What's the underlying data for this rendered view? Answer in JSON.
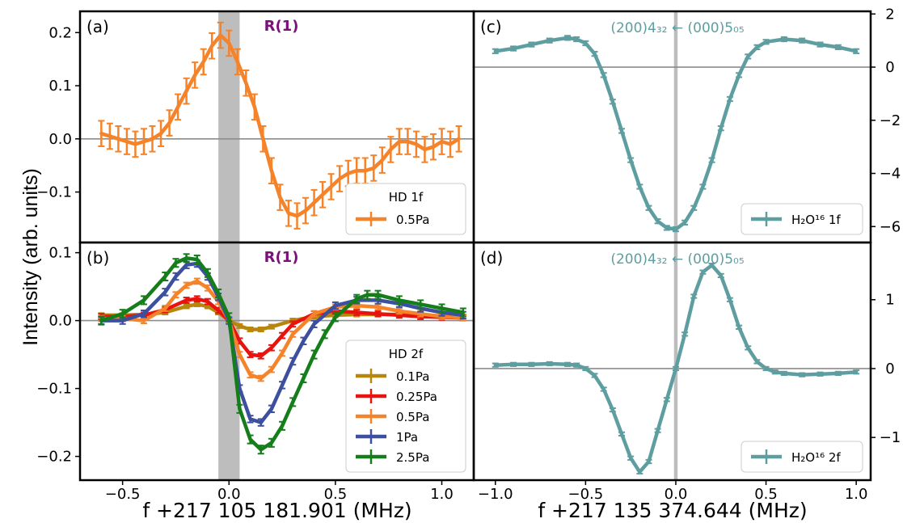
{
  "figure": {
    "ylabel": "Intensity (arb. units)",
    "left_xlabel": "f +217 105 181.901 (MHz)",
    "right_xlabel": "f +217 135 374.644 (MHz)"
  },
  "chart_data": [
    {
      "panel": "(a)",
      "type": "line",
      "annotation": "R(1)",
      "annotation_color": "#7d0f7d",
      "legend_title": "HD 1f",
      "legend_position": "lower-right",
      "xlim": [
        -0.7,
        1.15
      ],
      "ylim": [
        -0.195,
        0.24
      ],
      "xticks": [
        -0.5,
        0.0,
        0.5,
        1.0
      ],
      "yticks": [
        -0.1,
        0.0,
        0.1,
        0.2
      ],
      "ytick_labels": [
        "−0.1",
        "0.0",
        "0.1",
        "0.2"
      ],
      "zero_line": true,
      "highlight_band": [
        -0.05,
        0.05
      ],
      "series": [
        {
          "name": "0.5Pa",
          "color": "#f5832a",
          "err": 0.024,
          "x": [
            -0.6,
            -0.56,
            -0.52,
            -0.48,
            -0.44,
            -0.4,
            -0.36,
            -0.32,
            -0.28,
            -0.24,
            -0.2,
            -0.16,
            -0.12,
            -0.08,
            -0.04,
            0.0,
            0.04,
            0.08,
            0.12,
            0.16,
            0.2,
            0.24,
            0.28,
            0.32,
            0.36,
            0.4,
            0.44,
            0.48,
            0.52,
            0.56,
            0.6,
            0.64,
            0.68,
            0.72,
            0.76,
            0.8,
            0.84,
            0.88,
            0.92,
            0.96,
            1.0,
            1.04,
            1.08
          ],
          "y": [
            0.01,
            0.005,
            0.0,
            -0.005,
            -0.01,
            -0.005,
            0.0,
            0.01,
            0.03,
            0.06,
            0.09,
            0.12,
            0.145,
            0.175,
            0.195,
            0.18,
            0.145,
            0.105,
            0.06,
            0.0,
            -0.06,
            -0.11,
            -0.14,
            -0.145,
            -0.135,
            -0.12,
            -0.105,
            -0.09,
            -0.075,
            -0.065,
            -0.06,
            -0.06,
            -0.055,
            -0.04,
            -0.02,
            -0.005,
            -0.005,
            -0.01,
            -0.02,
            -0.015,
            -0.005,
            -0.01,
            0.0
          ]
        }
      ]
    },
    {
      "panel": "(b)",
      "type": "line",
      "annotation": "R(1)",
      "annotation_color": "#7d0f7d",
      "legend_title": "HD 2f",
      "legend_position": "lower-right",
      "xlim": [
        -0.7,
        1.15
      ],
      "ylim": [
        -0.235,
        0.115
      ],
      "xticks": [
        -0.5,
        0.0,
        0.5,
        1.0
      ],
      "xtick_labels": [
        "−0.5",
        "0.0",
        "0.5",
        "1.0"
      ],
      "yticks": [
        -0.2,
        -0.1,
        0.0,
        0.1
      ],
      "ytick_labels": [
        "−0.2",
        "−0.1",
        "0.0",
        "0.1"
      ],
      "zero_line": true,
      "highlight_band": [
        -0.05,
        0.05
      ],
      "series": [
        {
          "name": "0.1Pa",
          "color": "#b8860b",
          "err": 0.003,
          "x": [
            -0.6,
            -0.5,
            -0.4,
            -0.3,
            -0.2,
            -0.15,
            -0.1,
            -0.05,
            0.0,
            0.05,
            0.1,
            0.15,
            0.2,
            0.3,
            0.4,
            0.5,
            0.6,
            0.7,
            0.8,
            0.9,
            1.0,
            1.1
          ],
          "y": [
            0.008,
            0.008,
            0.009,
            0.012,
            0.021,
            0.024,
            0.021,
            0.012,
            0.0,
            -0.008,
            -0.013,
            -0.013,
            -0.009,
            0.0,
            0.006,
            0.008,
            0.009,
            0.009,
            0.009,
            0.008,
            0.007,
            0.006
          ]
        },
        {
          "name": "0.25Pa",
          "color": "#e8130f",
          "err": 0.004,
          "x": [
            -0.6,
            -0.5,
            -0.4,
            -0.3,
            -0.2,
            -0.15,
            -0.1,
            -0.05,
            0.0,
            0.05,
            0.1,
            0.15,
            0.2,
            0.25,
            0.3,
            0.4,
            0.5,
            0.6,
            0.7,
            0.8,
            0.9,
            1.0,
            1.1
          ],
          "y": [
            0.006,
            0.006,
            0.008,
            0.016,
            0.03,
            0.032,
            0.028,
            0.015,
            0.0,
            -0.03,
            -0.05,
            -0.052,
            -0.04,
            -0.022,
            -0.005,
            0.01,
            0.014,
            0.012,
            0.01,
            0.008,
            0.006,
            0.005,
            0.004
          ]
        },
        {
          "name": "0.5Pa",
          "color": "#f5832a",
          "err": 0.004,
          "x": [
            -0.6,
            -0.5,
            -0.4,
            -0.3,
            -0.25,
            -0.2,
            -0.15,
            -0.1,
            -0.05,
            0.0,
            0.05,
            0.1,
            0.15,
            0.2,
            0.25,
            0.3,
            0.4,
            0.5,
            0.6,
            0.7,
            0.8,
            0.9,
            1.0,
            1.1
          ],
          "y": [
            0.003,
            0.003,
            0.0,
            0.018,
            0.038,
            0.052,
            0.058,
            0.048,
            0.028,
            0.0,
            -0.05,
            -0.08,
            -0.085,
            -0.072,
            -0.048,
            -0.02,
            0.01,
            0.02,
            0.022,
            0.02,
            0.014,
            0.01,
            0.006,
            0.004
          ]
        },
        {
          "name": "1Pa",
          "color": "#3d4f9f",
          "err": 0.005,
          "x": [
            -0.6,
            -0.5,
            -0.4,
            -0.3,
            -0.25,
            -0.2,
            -0.15,
            -0.1,
            -0.05,
            0.0,
            0.05,
            0.1,
            0.15,
            0.2,
            0.25,
            0.3,
            0.35,
            0.4,
            0.5,
            0.6,
            0.7,
            0.8,
            0.9,
            1.0,
            1.1
          ],
          "y": [
            0.0,
            0.0,
            0.01,
            0.042,
            0.065,
            0.082,
            0.084,
            0.065,
            0.035,
            0.0,
            -0.1,
            -0.145,
            -0.15,
            -0.13,
            -0.095,
            -0.06,
            -0.03,
            -0.005,
            0.022,
            0.03,
            0.03,
            0.025,
            0.018,
            0.012,
            0.008
          ]
        },
        {
          "name": "2.5Pa",
          "color": "#157e1a",
          "err": 0.006,
          "x": [
            -0.6,
            -0.5,
            -0.4,
            -0.3,
            -0.25,
            -0.2,
            -0.15,
            -0.1,
            -0.05,
            0.0,
            0.05,
            0.1,
            0.15,
            0.2,
            0.25,
            0.3,
            0.35,
            0.4,
            0.45,
            0.5,
            0.6,
            0.65,
            0.7,
            0.8,
            0.9,
            1.0,
            1.1
          ],
          "y": [
            0.0,
            0.01,
            0.03,
            0.065,
            0.085,
            0.092,
            0.09,
            0.07,
            0.04,
            0.005,
            -0.13,
            -0.175,
            -0.19,
            -0.18,
            -0.155,
            -0.12,
            -0.085,
            -0.05,
            -0.02,
            0.005,
            0.032,
            0.038,
            0.038,
            0.03,
            0.024,
            0.018,
            0.012
          ]
        }
      ]
    },
    {
      "panel": "(c)",
      "type": "line",
      "annotation": "(200)4₃₂ ← (000)5₀₅",
      "annotation_color": "#5f9ea0",
      "legend_label": "H₂O¹⁶ 1f",
      "legend_position": "lower-right",
      "y_axis_side": "right",
      "xlim": [
        -1.12,
        1.08
      ],
      "ylim": [
        -6.6,
        2.1
      ],
      "xticks": [
        -1.0,
        -0.5,
        0.0,
        0.5,
        1.0
      ],
      "yticks": [
        -6,
        -4,
        -2,
        0,
        2
      ],
      "ytick_labels": [
        "−6",
        "−4",
        "−2",
        "0",
        "2"
      ],
      "zero_line": true,
      "highlight_band": [
        -0.01,
        0.01
      ],
      "series": [
        {
          "name": "H₂O¹⁶ 1f",
          "color": "#5f9ea0",
          "err": 0.08,
          "x": [
            -1.0,
            -0.9,
            -0.8,
            -0.7,
            -0.6,
            -0.55,
            -0.5,
            -0.45,
            -0.4,
            -0.35,
            -0.3,
            -0.25,
            -0.2,
            -0.15,
            -0.1,
            -0.05,
            0.0,
            0.05,
            0.1,
            0.15,
            0.2,
            0.25,
            0.3,
            0.35,
            0.4,
            0.45,
            0.5,
            0.6,
            0.7,
            0.8,
            0.9,
            1.0
          ],
          "y": [
            0.6,
            0.7,
            0.85,
            1.0,
            1.1,
            1.05,
            0.9,
            0.5,
            -0.3,
            -1.3,
            -2.4,
            -3.5,
            -4.5,
            -5.3,
            -5.8,
            -6.05,
            -6.1,
            -5.85,
            -5.3,
            -4.5,
            -3.5,
            -2.3,
            -1.2,
            -0.3,
            0.4,
            0.75,
            0.95,
            1.05,
            1.0,
            0.85,
            0.75,
            0.6
          ]
        }
      ]
    },
    {
      "panel": "(d)",
      "type": "line",
      "annotation": "(200)4₃₂ ← (000)5₀₅",
      "annotation_color": "#5f9ea0",
      "legend_label": "H₂O¹⁶ 2f",
      "legend_position": "lower-right",
      "y_axis_side": "right",
      "xlim": [
        -1.12,
        1.08
      ],
      "ylim": [
        -1.62,
        1.83
      ],
      "xticks": [
        -1.0,
        -0.5,
        0.0,
        0.5,
        1.0
      ],
      "xtick_labels": [
        "−1.0",
        "−0.5",
        "0.0",
        "0.5",
        "1.0"
      ],
      "yticks": [
        -1,
        0,
        1
      ],
      "ytick_labels": [
        "−1",
        "0",
        "1"
      ],
      "zero_line": true,
      "highlight_band": [
        -0.01,
        0.01
      ],
      "series": [
        {
          "name": "H₂O¹⁶ 2f",
          "color": "#5f9ea0",
          "err": 0.025,
          "x": [
            -1.0,
            -0.9,
            -0.8,
            -0.7,
            -0.6,
            -0.55,
            -0.5,
            -0.45,
            -0.4,
            -0.35,
            -0.3,
            -0.25,
            -0.2,
            -0.15,
            -0.1,
            -0.05,
            0.0,
            0.05,
            0.1,
            0.15,
            0.2,
            0.25,
            0.3,
            0.35,
            0.4,
            0.45,
            0.5,
            0.55,
            0.6,
            0.7,
            0.8,
            0.9,
            1.0
          ],
          "y": [
            0.05,
            0.06,
            0.06,
            0.07,
            0.06,
            0.05,
            0.0,
            -0.1,
            -0.3,
            -0.6,
            -0.95,
            -1.3,
            -1.5,
            -1.35,
            -0.9,
            -0.45,
            0.0,
            0.5,
            1.05,
            1.4,
            1.5,
            1.35,
            1.0,
            0.6,
            0.3,
            0.1,
            0.0,
            -0.05,
            -0.07,
            -0.09,
            -0.08,
            -0.07,
            -0.05
          ]
        }
      ]
    }
  ]
}
